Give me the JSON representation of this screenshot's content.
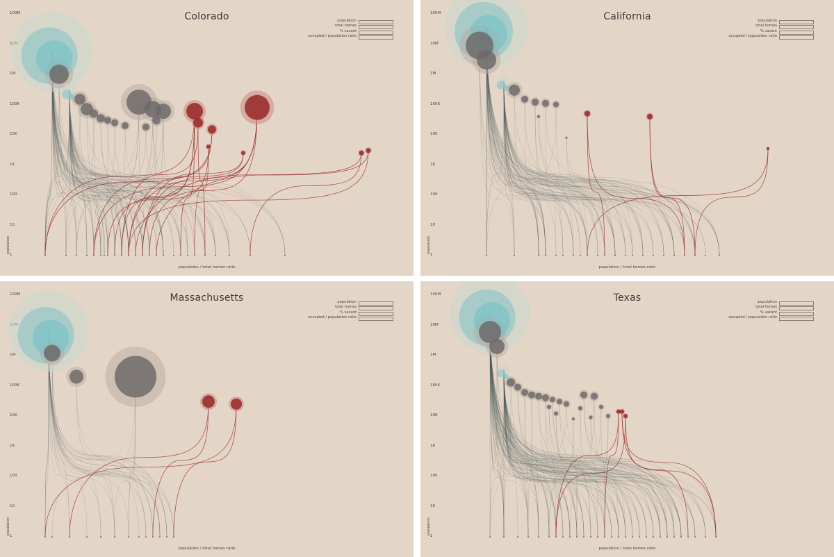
{
  "colors": {
    "background": "#e4d6c6",
    "teal": "#6fbfc6",
    "gray": "#6e6a6a",
    "red": "#9b2f2f",
    "line": "#4d5a5c"
  },
  "legend_labels": [
    "population",
    "total homes",
    "% vacant",
    "occupied / population ratio"
  ],
  "chart_data": [
    {
      "type": "scatter",
      "title": "Colorado",
      "xlabel": "population / total homes ratio",
      "ylabel": "population",
      "y_scale": "log",
      "y_ticks": [
        "100M",
        "10M",
        "1M",
        "100K",
        "10K",
        "1K",
        "100",
        "10",
        "1"
      ],
      "x_anchors": [
        0.09,
        0.15,
        0.18,
        0.21,
        0.23,
        0.25,
        0.26,
        0.27,
        0.29,
        0.31,
        0.33,
        0.35,
        0.37,
        0.39,
        0.41,
        0.43,
        0.46,
        0.48,
        0.5,
        0.52,
        0.55,
        0.58,
        0.62,
        0.68,
        0.78
      ],
      "points": [
        {
          "x": 0.11,
          "y": 5700000,
          "r": 58,
          "kind": "teal"
        },
        {
          "x": 0.13,
          "y": 1000000,
          "r": 14,
          "kind": "gray"
        },
        {
          "x": 0.16,
          "y": 300000,
          "r": 10,
          "kind": "teal"
        },
        {
          "x": 0.19,
          "y": 150000,
          "r": 8,
          "kind": "gray"
        },
        {
          "x": 0.21,
          "y": 70000,
          "r": 9,
          "kind": "gray"
        },
        {
          "x": 0.23,
          "y": 50000,
          "r": 6,
          "kind": "gray"
        },
        {
          "x": 0.25,
          "y": 35000,
          "r": 6,
          "kind": "gray"
        },
        {
          "x": 0.27,
          "y": 30000,
          "r": 5,
          "kind": "gray"
        },
        {
          "x": 0.29,
          "y": 25000,
          "r": 5,
          "kind": "gray"
        },
        {
          "x": 0.32,
          "y": 20000,
          "r": 5,
          "kind": "gray"
        },
        {
          "x": 0.36,
          "y": 120000,
          "r": 18,
          "kind": "gray"
        },
        {
          "x": 0.38,
          "y": 18000,
          "r": 5,
          "kind": "gray"
        },
        {
          "x": 0.4,
          "y": 70000,
          "r": 12,
          "kind": "gray"
        },
        {
          "x": 0.41,
          "y": 30000,
          "r": 6,
          "kind": "gray"
        },
        {
          "x": 0.43,
          "y": 60000,
          "r": 11,
          "kind": "gray"
        },
        {
          "x": 0.52,
          "y": 60000,
          "r": 12,
          "kind": "red"
        },
        {
          "x": 0.53,
          "y": 25000,
          "r": 7,
          "kind": "red"
        },
        {
          "x": 0.57,
          "y": 15000,
          "r": 6,
          "kind": "red"
        },
        {
          "x": 0.56,
          "y": 4000,
          "r": 3,
          "kind": "red"
        },
        {
          "x": 0.66,
          "y": 2500,
          "r": 3,
          "kind": "red"
        },
        {
          "x": 0.7,
          "y": 80000,
          "r": 18,
          "kind": "red"
        },
        {
          "x": 1.0,
          "y": 2500,
          "r": 3.5,
          "kind": "red"
        },
        {
          "x": 1.02,
          "y": 3000,
          "r": 3.5,
          "kind": "red"
        }
      ]
    },
    {
      "type": "scatter",
      "title": "California",
      "xlabel": "population / total homes ratio",
      "ylabel": "population",
      "y_scale": "log",
      "y_ticks": [
        "100M",
        "10M",
        "1M",
        "100K",
        "10K",
        "1K",
        "100",
        "10",
        "1"
      ],
      "x_anchors": [
        0.15,
        0.23,
        0.3,
        0.32,
        0.35,
        0.37,
        0.4,
        0.42,
        0.44,
        0.47,
        0.49,
        0.52,
        0.55,
        0.57,
        0.6,
        0.63,
        0.66,
        0.69,
        0.72,
        0.75,
        0.78,
        0.82
      ],
      "points": [
        {
          "x": 0.15,
          "y": 37000000,
          "r": 60,
          "kind": "teal"
        },
        {
          "x": 0.13,
          "y": 9000000,
          "r": 20,
          "kind": "gray"
        },
        {
          "x": 0.15,
          "y": 3000000,
          "r": 14,
          "kind": "gray"
        },
        {
          "x": 0.2,
          "y": 600000,
          "r": 9,
          "kind": "teal"
        },
        {
          "x": 0.23,
          "y": 300000,
          "r": 8,
          "kind": "gray"
        },
        {
          "x": 0.26,
          "y": 150000,
          "r": 5,
          "kind": "gray"
        },
        {
          "x": 0.29,
          "y": 120000,
          "r": 5,
          "kind": "gray"
        },
        {
          "x": 0.32,
          "y": 110000,
          "r": 5,
          "kind": "gray"
        },
        {
          "x": 0.35,
          "y": 100000,
          "r": 4,
          "kind": "gray"
        },
        {
          "x": 0.3,
          "y": 40000,
          "r": 2,
          "kind": "gray"
        },
        {
          "x": 0.38,
          "y": 8000,
          "r": 1.5,
          "kind": "gray"
        },
        {
          "x": 0.44,
          "y": 50000,
          "r": 4,
          "kind": "red"
        },
        {
          "x": 0.62,
          "y": 40000,
          "r": 4,
          "kind": "red"
        },
        {
          "x": 0.96,
          "y": 3500,
          "r": 2,
          "kind": "red"
        }
      ]
    },
    {
      "type": "scatter",
      "title": "Massachusetts",
      "xlabel": "population / total homes ratio",
      "ylabel": "population",
      "y_scale": "log",
      "y_ticks": [
        "100M",
        "10M",
        "1M",
        "100K",
        "10K",
        "1K",
        "100",
        "10",
        "1"
      ],
      "x_anchors": [
        0.09,
        0.11,
        0.16,
        0.21,
        0.25,
        0.29,
        0.33,
        0.36,
        0.38,
        0.4,
        0.42,
        0.44,
        0.46
      ],
      "points": [
        {
          "x": 0.1,
          "y": 6500000,
          "r": 58,
          "kind": "teal"
        },
        {
          "x": 0.11,
          "y": 1200000,
          "r": 12,
          "kind": "gray"
        },
        {
          "x": 0.18,
          "y": 200000,
          "r": 10,
          "kind": "gray"
        },
        {
          "x": 0.35,
          "y": 200000,
          "r": 30,
          "kind": "gray"
        },
        {
          "x": 0.56,
          "y": 30000,
          "r": 9,
          "kind": "red"
        },
        {
          "x": 0.64,
          "y": 25000,
          "r": 8,
          "kind": "red"
        }
      ]
    },
    {
      "type": "scatter",
      "title": "Texas",
      "xlabel": "population / total homes ratio",
      "ylabel": "population",
      "y_scale": "log",
      "y_ticks": [
        "100M",
        "10M",
        "1M",
        "100K",
        "10K",
        "1K",
        "100",
        "10",
        "1"
      ],
      "x_anchors": [
        0.16,
        0.2,
        0.24,
        0.27,
        0.3,
        0.33,
        0.35,
        0.37,
        0.39,
        0.41,
        0.43,
        0.45,
        0.47,
        0.49,
        0.51,
        0.53,
        0.55,
        0.57,
        0.59,
        0.61,
        0.63,
        0.65,
        0.67,
        0.69,
        0.71,
        0.73,
        0.75,
        0.78,
        0.81
      ],
      "points": [
        {
          "x": 0.16,
          "y": 25000000,
          "r": 58,
          "kind": "teal"
        },
        {
          "x": 0.16,
          "y": 6000000,
          "r": 16,
          "kind": "gray"
        },
        {
          "x": 0.18,
          "y": 2000000,
          "r": 11,
          "kind": "gray"
        },
        {
          "x": 0.2,
          "y": 350000,
          "r": 8,
          "kind": "teal"
        },
        {
          "x": 0.22,
          "y": 130000,
          "r": 6,
          "kind": "gray"
        },
        {
          "x": 0.24,
          "y": 90000,
          "r": 5,
          "kind": "gray"
        },
        {
          "x": 0.26,
          "y": 60000,
          "r": 5,
          "kind": "gray"
        },
        {
          "x": 0.28,
          "y": 50000,
          "r": 5,
          "kind": "gray"
        },
        {
          "x": 0.3,
          "y": 45000,
          "r": 5,
          "kind": "gray"
        },
        {
          "x": 0.32,
          "y": 40000,
          "r": 5,
          "kind": "gray"
        },
        {
          "x": 0.34,
          "y": 35000,
          "r": 4,
          "kind": "gray"
        },
        {
          "x": 0.36,
          "y": 30000,
          "r": 4,
          "kind": "gray"
        },
        {
          "x": 0.38,
          "y": 25000,
          "r": 4,
          "kind": "gray"
        },
        {
          "x": 0.33,
          "y": 20000,
          "r": 3,
          "kind": "gray"
        },
        {
          "x": 0.35,
          "y": 12000,
          "r": 3,
          "kind": "gray"
        },
        {
          "x": 0.4,
          "y": 8000,
          "r": 2,
          "kind": "gray"
        },
        {
          "x": 0.43,
          "y": 50000,
          "r": 5,
          "kind": "gray"
        },
        {
          "x": 0.46,
          "y": 45000,
          "r": 5,
          "kind": "gray"
        },
        {
          "x": 0.48,
          "y": 20000,
          "r": 3,
          "kind": "gray"
        },
        {
          "x": 0.42,
          "y": 18000,
          "r": 3,
          "kind": "gray"
        },
        {
          "x": 0.45,
          "y": 9000,
          "r": 2.5,
          "kind": "gray"
        },
        {
          "x": 0.5,
          "y": 10000,
          "r": 3,
          "kind": "gray"
        },
        {
          "x": 0.53,
          "y": 14000,
          "r": 3,
          "kind": "red"
        },
        {
          "x": 0.54,
          "y": 14000,
          "r": 3,
          "kind": "red"
        },
        {
          "x": 0.55,
          "y": 10000,
          "r": 3,
          "kind": "red"
        }
      ]
    }
  ]
}
